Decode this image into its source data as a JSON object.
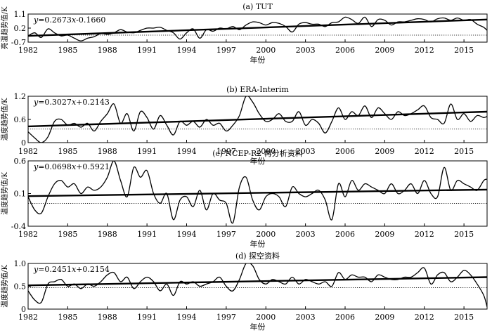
{
  "chart_data": [
    {
      "type": "line",
      "title": "(a) TUT",
      "xlabel": "年份",
      "ylabel": "亮温趋势值/K",
      "xlim": [
        1982,
        2016.75
      ],
      "ylim": [
        -0.7,
        1.1
      ],
      "yticks": [
        "1.1",
        "0.2",
        "-0.7"
      ],
      "xticks": [
        "1982",
        "1985",
        "1988",
        "1991",
        "1994",
        "1997",
        "2000",
        "2003",
        "2006",
        "2009",
        "2012",
        "2015"
      ],
      "equation": "y=0.2673x-0.1660",
      "reference": {
        "style": "dotted",
        "y": -0.25
      },
      "trend": {
        "x": [
          1982,
          2016.75
        ],
        "y": [
          -0.3,
          0.75
        ]
      },
      "series": [
        {
          "x": [
            1982,
            1982.5,
            1983,
            1983.5,
            1984,
            1984.5,
            1985,
            1985.5,
            1986,
            1986.5,
            1987,
            1987.5,
            1988,
            1988.5,
            1989,
            1989.5,
            1990,
            1990.5,
            1991,
            1991.5,
            1992,
            1992.5,
            1993,
            1993.5,
            1994,
            1994.5,
            1995,
            1995.5,
            1996,
            1996.5,
            1997,
            1997.5,
            1998,
            1998.5,
            1999,
            1999.5,
            2000,
            2000.5,
            2001,
            2001.5,
            2002,
            2002.5,
            2003,
            2003.5,
            2004,
            2004.5,
            2005,
            2005.5,
            2006,
            2006.5,
            2007,
            2007.5,
            2008,
            2008.5,
            2009,
            2009.5,
            2010,
            2010.5,
            2011,
            2011.5,
            2012,
            2012.5,
            2013,
            2013.5,
            2014,
            2014.5,
            2015,
            2015.5,
            2016,
            2016.5,
            2016.75
          ],
          "y": [
            -0.3,
            -0.1,
            -0.4,
            0.15,
            -0.1,
            -0.3,
            -0.25,
            -0.45,
            -0.62,
            -0.45,
            -0.35,
            -0.15,
            -0.2,
            -0.1,
            0.1,
            -0.05,
            -0.1,
            0.05,
            0.2,
            0.2,
            0.25,
            0.05,
            -0.1,
            -0.5,
            -0.1,
            0.15,
            -0.45,
            0.1,
            0.0,
            0.2,
            0.15,
            0.3,
            0.1,
            0.4,
            0.6,
            0.55,
            0.4,
            0.55,
            0.5,
            0.3,
            -0.05,
            0.45,
            0.55,
            0.45,
            0.45,
            0.3,
            0.55,
            0.6,
            0.9,
            0.75,
            0.5,
            0.9,
            0.3,
            0.75,
            0.7,
            0.4,
            0.6,
            0.6,
            0.7,
            0.8,
            0.75,
            0.6,
            0.8,
            0.85,
            0.7,
            0.85,
            0.7,
            0.75,
            0.45,
            0.25,
            0.05
          ]
        }
      ]
    },
    {
      "type": "line",
      "title": "(b) ERA-Interim",
      "xlabel": "年份",
      "ylabel": "温度趋势值/K",
      "xlim": [
        1982,
        2016.75
      ],
      "ylim": [
        0,
        1.2
      ],
      "yticks": [
        "1.2",
        "0.6",
        "0"
      ],
      "xticks": [
        "1982",
        "1985",
        "1988",
        "1991",
        "1994",
        "1997",
        "2000",
        "2003",
        "2006",
        "2009",
        "2012",
        "2015"
      ],
      "equation": "y=0.3027x+0.2143",
      "reference": {
        "style": "dotted",
        "y": 0.35
      },
      "trend": {
        "x": [
          1982,
          2016.75
        ],
        "y": [
          0.42,
          0.8
        ]
      },
      "series": [
        {
          "x": [
            1982,
            1982.5,
            1983,
            1983.5,
            1984,
            1984.5,
            1985,
            1985.5,
            1986,
            1986.5,
            1987,
            1987.5,
            1988,
            1988.5,
            1989,
            1989.5,
            1990,
            1990.5,
            1991,
            1991.5,
            1992,
            1992.5,
            1993,
            1993.5,
            1994,
            1994.5,
            1995,
            1995.5,
            1996,
            1996.5,
            1997,
            1997.5,
            1998,
            1998.5,
            1999,
            1999.5,
            2000,
            2000.5,
            2001,
            2001.5,
            2002,
            2002.5,
            2003,
            2003.5,
            2004,
            2004.5,
            2005,
            2005.5,
            2006,
            2006.5,
            2007,
            2007.5,
            2008,
            2008.5,
            2009,
            2009.5,
            2010,
            2010.5,
            2011,
            2011.5,
            2012,
            2012.5,
            2013,
            2013.5,
            2014,
            2014.5,
            2015,
            2015.5,
            2016,
            2016.5,
            2016.75
          ],
          "y": [
            0.28,
            0.12,
            0.0,
            0.15,
            0.55,
            0.6,
            0.45,
            0.5,
            0.4,
            0.5,
            0.3,
            0.55,
            0.75,
            1.0,
            0.5,
            0.75,
            0.3,
            0.8,
            0.65,
            0.35,
            0.7,
            0.45,
            0.2,
            0.55,
            0.45,
            0.55,
            0.4,
            0.6,
            0.45,
            0.5,
            0.3,
            0.45,
            0.7,
            1.2,
            1.05,
            0.75,
            0.55,
            0.6,
            0.75,
            0.55,
            0.55,
            0.8,
            0.45,
            0.6,
            0.5,
            0.25,
            0.55,
            0.9,
            0.6,
            0.8,
            0.7,
            0.95,
            0.65,
            0.9,
            0.75,
            0.6,
            0.8,
            0.7,
            0.75,
            0.85,
            0.95,
            0.65,
            0.6,
            0.5,
            1.0,
            0.6,
            0.75,
            0.55,
            0.7,
            0.65,
            0.68
          ]
        }
      ]
    },
    {
      "type": "line",
      "title": "(c) NCEP-R2 再分析资料",
      "xlabel": "年份",
      "ylabel": "温度趋势值/K",
      "xlim": [
        1982,
        2016.75
      ],
      "ylim": [
        -0.4,
        0.6
      ],
      "yticks": [
        "0.6",
        "0.1",
        "-0.4"
      ],
      "xticks": [
        "1982",
        "1985",
        "1988",
        "1991",
        "1994",
        "1997",
        "2000",
        "2003",
        "2006",
        "2009",
        "2012",
        "2015"
      ],
      "equation": "y=0.0698x+0.5921",
      "reference": {
        "style": "dotted",
        "y": -0.05
      },
      "trend": {
        "x": [
          1982,
          2016.75
        ],
        "y": [
          0.06,
          0.16
        ]
      },
      "series": [
        {
          "x": [
            1982,
            1982.5,
            1983,
            1983.5,
            1984,
            1984.5,
            1985,
            1985.5,
            1986,
            1986.5,
            1987,
            1987.5,
            1988,
            1988.5,
            1989,
            1989.5,
            1990,
            1990.5,
            1991,
            1991.5,
            1992,
            1992.5,
            1993,
            1993.5,
            1994,
            1994.5,
            1995,
            1995.5,
            1996,
            1996.5,
            1997,
            1997.5,
            1998,
            1998.5,
            1999,
            1999.5,
            2000,
            2000.5,
            2001,
            2001.5,
            2002,
            2002.5,
            2003,
            2003.5,
            2004,
            2004.5,
            2005,
            2005.5,
            2006,
            2006.5,
            2007,
            2007.5,
            2008,
            2008.5,
            2009,
            2009.5,
            2010,
            2010.5,
            2011,
            2011.5,
            2012,
            2012.5,
            2013,
            2013.5,
            2014,
            2014.5,
            2015,
            2015.5,
            2016,
            2016.5,
            2016.75
          ],
          "y": [
            0.05,
            -0.15,
            -0.2,
            0.05,
            0.25,
            0.3,
            0.2,
            0.25,
            0.1,
            0.2,
            0.15,
            0.2,
            0.35,
            0.6,
            0.3,
            0.05,
            0.5,
            0.35,
            0.45,
            0.1,
            -0.05,
            0.1,
            -0.3,
            0.0,
            0.05,
            -0.1,
            0.15,
            -0.15,
            0.1,
            0.0,
            -0.05,
            -0.35,
            0.2,
            0.35,
            0.0,
            -0.15,
            0.05,
            0.1,
            0.05,
            -0.1,
            0.2,
            0.1,
            0.05,
            0.1,
            0.15,
            0.0,
            -0.3,
            0.25,
            0.05,
            0.3,
            0.15,
            0.25,
            0.2,
            0.15,
            0.1,
            0.25,
            0.1,
            0.15,
            0.25,
            0.1,
            0.3,
            0.1,
            0.05,
            0.5,
            0.15,
            0.3,
            0.25,
            0.2,
            0.15,
            0.3,
            0.32
          ]
        }
      ]
    },
    {
      "type": "line",
      "title": "(d) 探空资料",
      "xlabel": "年份",
      "ylabel": "温度趋势值/K",
      "xlim": [
        1982,
        2016.75
      ],
      "ylim": [
        0,
        1.0
      ],
      "yticks": [
        "1.0",
        "0.5",
        "0"
      ],
      "xticks": [
        "1982",
        "1985",
        "1988",
        "1991",
        "1994",
        "1997",
        "2000",
        "2003",
        "2006",
        "2009",
        "2012",
        "2015"
      ],
      "equation": "y=0.2451x+0.2154",
      "reference": {
        "style": "dotted",
        "y": 0.47
      },
      "trend": {
        "x": [
          1982,
          2016.75
        ],
        "y": [
          0.52,
          0.7
        ]
      },
      "series": [
        {
          "x": [
            1982,
            1982.5,
            1983,
            1983.5,
            1984,
            1984.5,
            1985,
            1985.5,
            1986,
            1986.5,
            1987,
            1987.5,
            1988,
            1988.5,
            1989,
            1989.5,
            1990,
            1990.5,
            1991,
            1991.5,
            1992,
            1992.5,
            1993,
            1993.5,
            1994,
            1994.5,
            1995,
            1995.5,
            1996,
            1996.5,
            1997,
            1997.5,
            1998,
            1998.5,
            1999,
            1999.5,
            2000,
            2000.5,
            2001,
            2001.5,
            2002,
            2002.5,
            2003,
            2003.5,
            2004,
            2004.5,
            2005,
            2005.5,
            2006,
            2006.5,
            2007,
            2007.5,
            2008,
            2008.5,
            2009,
            2009.5,
            2010,
            2010.5,
            2011,
            2011.5,
            2012,
            2012.5,
            2013,
            2013.5,
            2014,
            2014.5,
            2015,
            2015.5,
            2016,
            2016.5,
            2016.75
          ],
          "y": [
            0.4,
            0.2,
            0.15,
            0.55,
            0.6,
            0.65,
            0.5,
            0.55,
            0.45,
            0.55,
            0.5,
            0.6,
            0.75,
            0.8,
            0.6,
            0.7,
            0.45,
            0.6,
            0.7,
            0.6,
            0.4,
            0.55,
            0.3,
            0.6,
            0.55,
            0.6,
            0.5,
            0.55,
            0.6,
            0.7,
            0.5,
            0.4,
            0.65,
            1.0,
            0.95,
            0.65,
            0.55,
            0.65,
            0.6,
            0.55,
            0.7,
            0.55,
            0.65,
            0.6,
            0.55,
            0.6,
            0.5,
            0.8,
            0.65,
            0.75,
            0.7,
            0.7,
            0.6,
            0.75,
            0.7,
            0.65,
            0.65,
            0.7,
            0.7,
            0.8,
            0.9,
            0.55,
            0.75,
            0.8,
            0.6,
            0.7,
            0.85,
            0.75,
            0.55,
            0.3,
            0.05
          ]
        }
      ]
    }
  ]
}
